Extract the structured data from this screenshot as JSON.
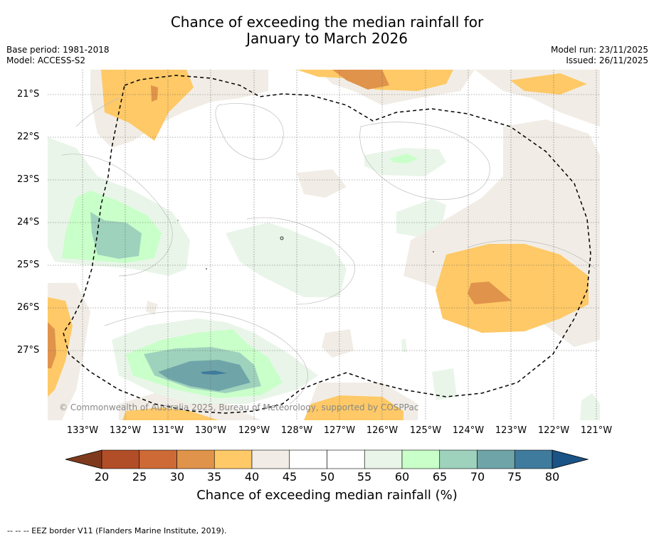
{
  "header": {
    "title_line1": "Chance of exceeding the median rainfall for",
    "title_line2": "January to March 2026",
    "base_period": "Base period: 1981-2018",
    "model": "Model: ACCESS-S2",
    "model_run": "Model run: 23/11/2025",
    "issued": "Issued: 26/11/2025"
  },
  "map": {
    "longitude_labels": [
      "133°W",
      "132°W",
      "131°W",
      "130°W",
      "129°W",
      "128°W",
      "127°W",
      "126°W",
      "125°W",
      "124°W",
      "123°W",
      "122°W",
      "121°W"
    ],
    "latitude_labels": [
      "21°S",
      "22°S",
      "23°S",
      "24°S",
      "25°S",
      "26°S",
      "27°S"
    ],
    "copyright": "© Commonwealth of Australia 2025, Bureau of Meteorology, supported by COSPPac",
    "eez_outline_name": "EEZ border"
  },
  "colorbar": {
    "ticks": [
      "20",
      "25",
      "30",
      "35",
      "40",
      "45",
      "50",
      "55",
      "60",
      "65",
      "70",
      "75",
      "80"
    ],
    "colors": [
      "#7f3a1e",
      "#b24e27",
      "#cd6a36",
      "#e0934a",
      "#fec966",
      "#f1ede6",
      "#ffffff",
      "#ffffff",
      "#e9f5e9",
      "#c9ffc9",
      "#9ed2bd",
      "#6fa5a8",
      "#3f7b9c",
      "#1a5386"
    ],
    "label": "Chance of exceeding median rainfall (%)"
  },
  "footer": {
    "legend_text": "--  --  -- EEZ border V11 (Flanders Marine Institute, 2019)."
  }
}
